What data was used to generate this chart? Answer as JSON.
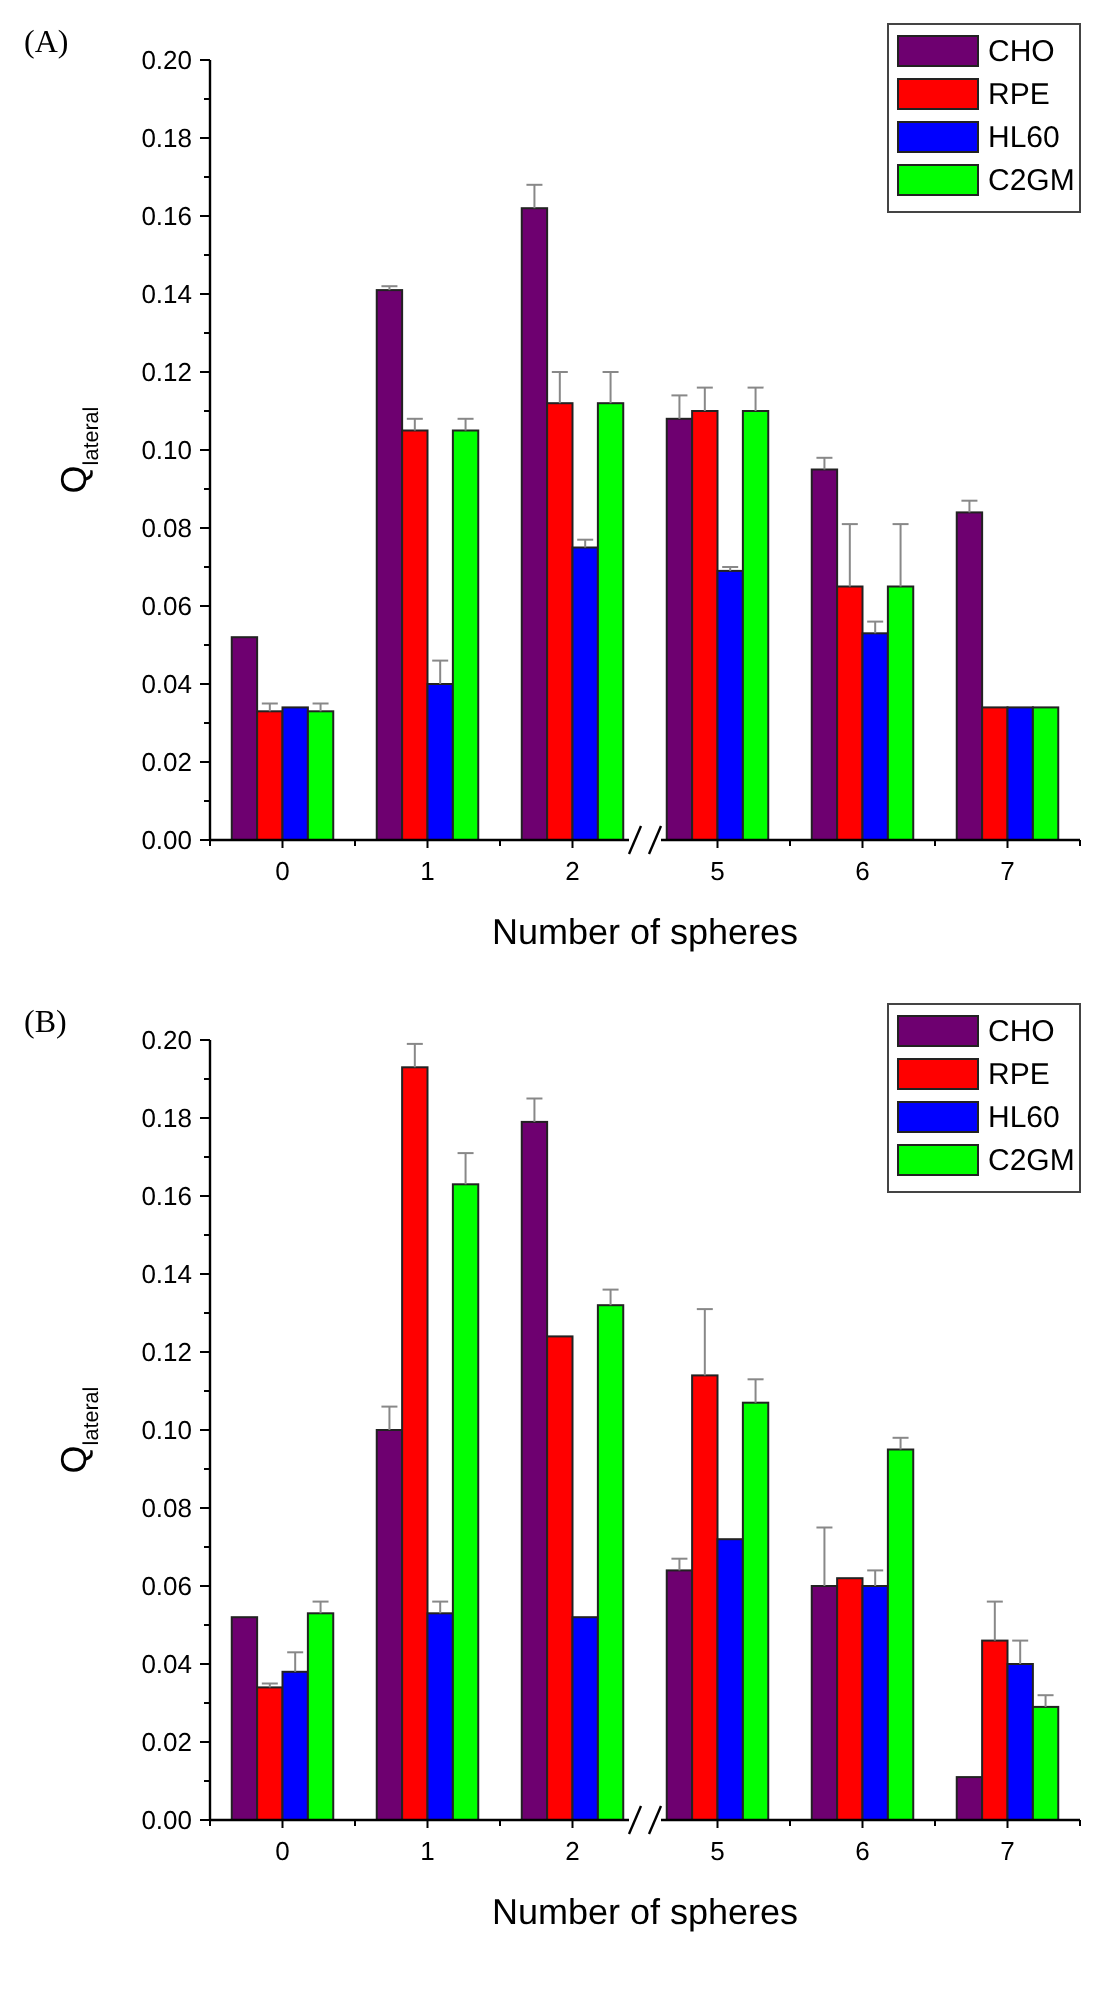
{
  "chart_data": [
    {
      "type": "bar",
      "title": "(A)",
      "xlabel": "Number of spheres",
      "ylabel": "Q$_{lateral}$",
      "categories": [
        "0",
        "1",
        "2",
        "5",
        "6",
        "7"
      ],
      "legend": "top right",
      "ylim": [
        0,
        0.2
      ],
      "yticks": [
        {
          "value": 0,
          "label": "0.00"
        },
        {
          "value": 0.01,
          "label": null
        },
        {
          "value": 0.02,
          "label": "0.02"
        },
        {
          "value": 0.03,
          "label": null
        },
        {
          "value": 0.04,
          "label": "0.04"
        },
        {
          "value": 0.05,
          "label": null
        },
        {
          "value": 0.06,
          "label": "0.06"
        },
        {
          "value": 0.07,
          "label": null
        },
        {
          "value": 0.08,
          "label": "0.08"
        },
        {
          "value": 0.09,
          "label": null
        },
        {
          "value": 0.1,
          "label": "0.10"
        },
        {
          "value": 0.11,
          "label": null
        },
        {
          "value": 0.12,
          "label": "0.12"
        },
        {
          "value": 0.13,
          "label": null
        },
        {
          "value": 0.14,
          "label": "0.14"
        },
        {
          "value": 0.15,
          "label": null
        },
        {
          "value": 0.16,
          "label": "0.16"
        },
        {
          "value": 0.17,
          "label": null
        },
        {
          "value": 0.18,
          "label": "0.18"
        },
        {
          "value": 0.19,
          "label": null
        },
        {
          "value": 0.2,
          "label": "0.20"
        }
      ],
      "series": [
        {
          "name": "CHO",
          "color": "#6e0070",
          "values": [
            0.052,
            0.141,
            0.162,
            0.108,
            0.095,
            0.084
          ],
          "errors": [
            null,
            [
              0.141,
              0.142
            ],
            [
              0.162,
              0.168
            ],
            [
              0.108,
              0.114
            ],
            [
              0.095,
              0.098
            ],
            [
              0.084,
              0.087
            ]
          ]
        },
        {
          "name": "RPE",
          "color": "#ff0000",
          "values": [
            0.033,
            0.105,
            0.112,
            0.11,
            0.065,
            0.034
          ],
          "errors": [
            [
              0.033,
              0.035
            ],
            [
              0.105,
              0.108
            ],
            [
              0.112,
              0.12
            ],
            [
              0.11,
              0.116
            ],
            [
              0.065,
              0.081
            ],
            null
          ]
        },
        {
          "name": "HL60",
          "color": "#0000ff",
          "values": [
            0.034,
            0.04,
            0.075,
            0.069,
            0.053,
            0.034
          ],
          "errors": [
            null,
            [
              0.04,
              0.046
            ],
            [
              0.075,
              0.077
            ],
            [
              0.069,
              0.07
            ],
            [
              0.053,
              0.056
            ],
            null
          ]
        },
        {
          "name": "C2GM",
          "color": "#00ff00",
          "values": [
            0.033,
            0.105,
            0.112,
            0.11,
            0.065,
            0.034
          ],
          "errors": [
            [
              0.033,
              0.035
            ],
            [
              0.105,
              0.108
            ],
            [
              0.112,
              0.12
            ],
            [
              0.11,
              0.116
            ],
            [
              0.065,
              0.081
            ],
            null
          ]
        }
      ]
    },
    {
      "type": "bar",
      "title": "(B)",
      "xlabel": "Number of spheres",
      "ylabel": "Q$_{lateral}$",
      "categories": [
        "0",
        "1",
        "2",
        "5",
        "6",
        "7"
      ],
      "legend": "top right",
      "ylim": [
        0,
        0.2
      ],
      "yticks": [
        {
          "value": 0,
          "label": "0.00"
        },
        {
          "value": 0.01,
          "label": null
        },
        {
          "value": 0.02,
          "label": "0.02"
        },
        {
          "value": 0.03,
          "label": null
        },
        {
          "value": 0.04,
          "label": "0.04"
        },
        {
          "value": 0.05,
          "label": null
        },
        {
          "value": 0.06,
          "label": "0.06"
        },
        {
          "value": 0.07,
          "label": null
        },
        {
          "value": 0.08,
          "label": "0.08"
        },
        {
          "value": 0.09,
          "label": null
        },
        {
          "value": 0.1,
          "label": "0.10"
        },
        {
          "value": 0.11,
          "label": null
        },
        {
          "value": 0.12,
          "label": "0.12"
        },
        {
          "value": 0.13,
          "label": null
        },
        {
          "value": 0.14,
          "label": "0.14"
        },
        {
          "value": 0.15,
          "label": null
        },
        {
          "value": 0.16,
          "label": "0.16"
        },
        {
          "value": 0.17,
          "label": null
        },
        {
          "value": 0.18,
          "label": "0.18"
        },
        {
          "value": 0.19,
          "label": null
        },
        {
          "value": 0.2,
          "label": "0.20"
        }
      ],
      "series": [
        {
          "name": "CHO",
          "color": "#6e0070",
          "values": [
            0.052,
            0.1,
            0.179,
            0.064,
            0.06,
            0.011
          ],
          "errors": [
            null,
            [
              0.1,
              0.106
            ],
            [
              0.179,
              0.185
            ],
            [
              0.064,
              0.067
            ],
            [
              0.06,
              0.075
            ],
            null
          ]
        },
        {
          "name": "RPE",
          "color": "#ff0000",
          "values": [
            0.034,
            0.193,
            0.124,
            0.114,
            0.062,
            0.046
          ],
          "errors": [
            [
              0.034,
              0.035
            ],
            [
              0.193,
              0.199
            ],
            null,
            [
              0.114,
              0.131
            ],
            null,
            [
              0.046,
              0.056
            ]
          ]
        },
        {
          "name": "HL60",
          "color": "#0000ff",
          "values": [
            0.038,
            0.053,
            0.052,
            0.072,
            0.06,
            0.04
          ],
          "errors": [
            [
              0.038,
              0.043
            ],
            [
              0.053,
              0.056
            ],
            null,
            null,
            [
              0.06,
              0.064
            ],
            [
              0.04,
              0.046
            ]
          ]
        },
        {
          "name": "C2GM",
          "color": "#00ff00",
          "values": [
            0.053,
            0.163,
            0.132,
            0.107,
            0.095,
            0.029
          ],
          "errors": [
            [
              0.053,
              0.056
            ],
            [
              0.163,
              0.171
            ],
            [
              0.132,
              0.136
            ],
            [
              0.107,
              0.113
            ],
            [
              0.095,
              0.098
            ],
            [
              0.029,
              0.032
            ]
          ]
        }
      ]
    }
  ]
}
